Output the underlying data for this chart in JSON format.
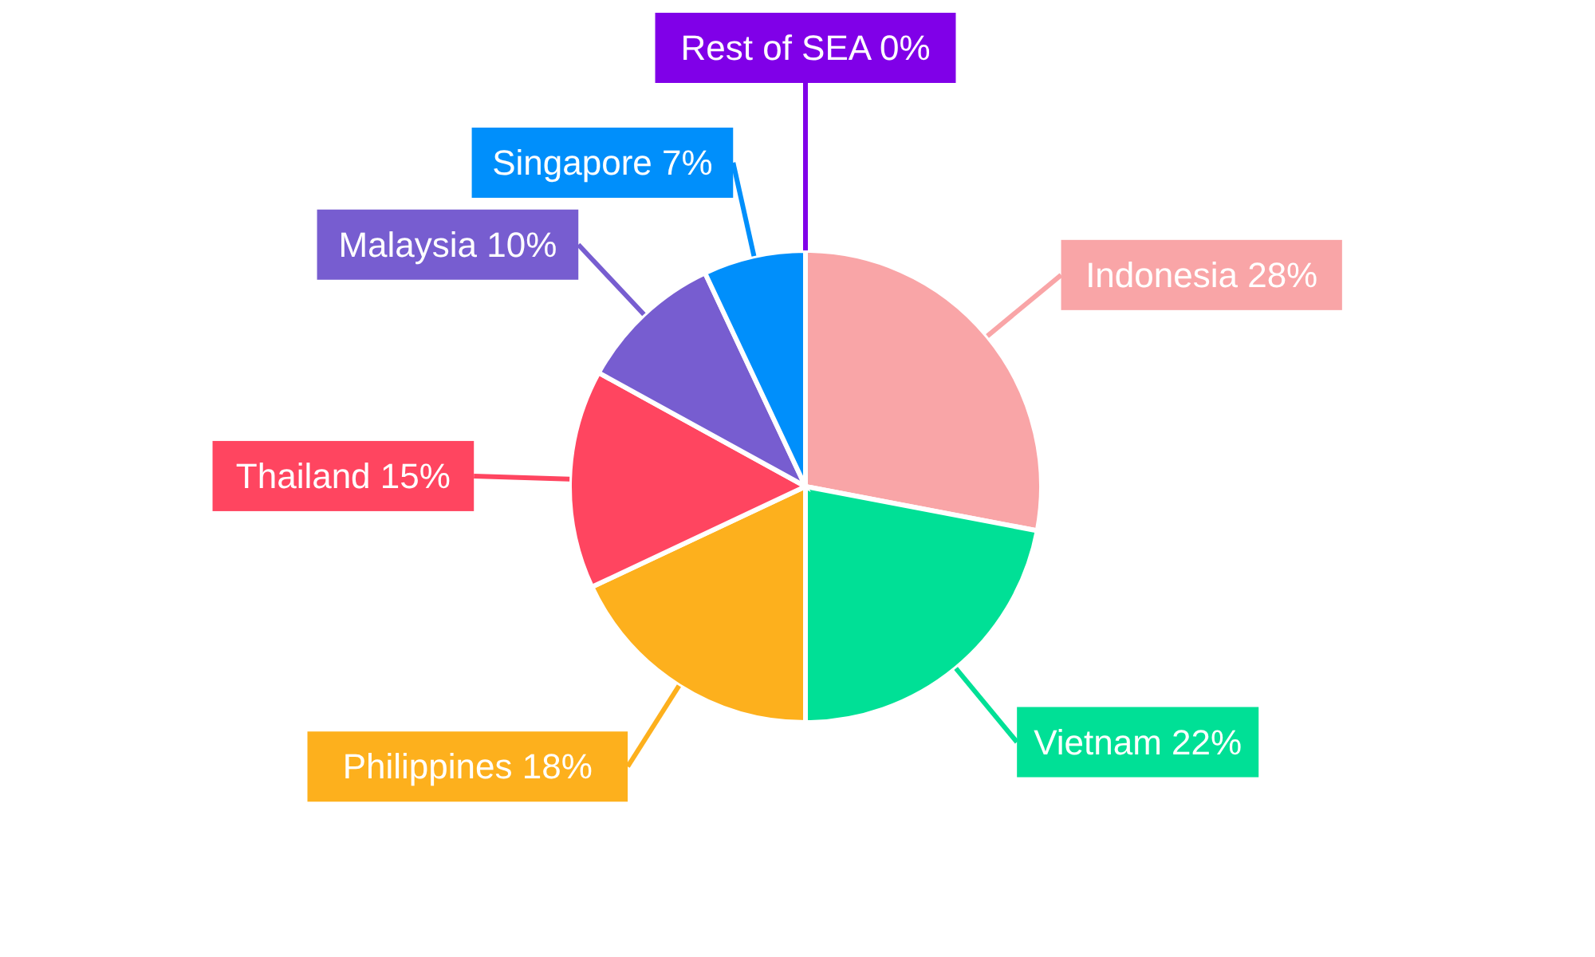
{
  "chart_data": {
    "type": "pie",
    "categories": [
      "Indonesia",
      "Vietnam",
      "Philippines",
      "Thailand",
      "Malaysia",
      "Singapore",
      "Rest of SEA"
    ],
    "values": [
      28,
      22,
      18,
      15,
      10,
      7,
      0
    ],
    "value_labels": [
      "28%",
      "22%",
      "18%",
      "15%",
      "10%",
      "7%",
      "0%"
    ],
    "colors": [
      "#f9a5a7",
      "#00e096",
      "#fdb01d",
      "#ff4560",
      "#775dd0",
      "#008ffb",
      "#8000e8"
    ],
    "legend": false
  }
}
